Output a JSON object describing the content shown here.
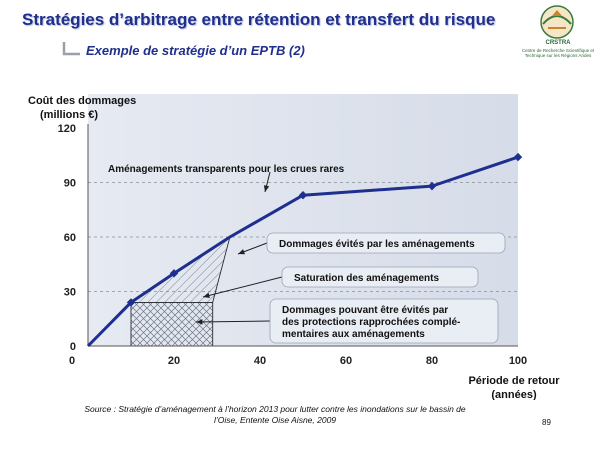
{
  "header": {
    "title": "Stratégies d’arbitrage entre rétention et transfert du risque",
    "subtitle": "Exemple de stratégie d’un EPTB (2)"
  },
  "logo": {
    "acronym": "CRSTRA",
    "caption": "Centre de Recherche Scientifique et Technique sur les Régions Arides"
  },
  "footer": {
    "source_line1": "Source : Stratégie d’aménagement à l’horizon 2013 pour lutter contre les inondations sur le bassin de",
    "source_line2": "l’Oise, Entente Oise Aisne, 2009",
    "page_number": "89"
  },
  "colors": {
    "title": "#1f2f8c",
    "series": "#1e2f8f",
    "plot_bg": "#dfe4ee",
    "grid": "#8a8f99"
  },
  "chart_data": {
    "type": "line",
    "ylabel_line1": "Coût des dommages",
    "ylabel_line2": "(millions €)",
    "xlabel_line1": "Période de retour",
    "xlabel_line2": "(années)",
    "xlim": [
      0,
      100
    ],
    "ylim": [
      0,
      120
    ],
    "x_ticks": [
      0,
      20,
      40,
      60,
      80,
      100
    ],
    "y_ticks": [
      0,
      30,
      60,
      90,
      120
    ],
    "grid": "dashed horizontal at 30, 60, 90",
    "series": [
      {
        "points": [
          [
            0,
            0
          ],
          [
            10,
            24
          ],
          [
            20,
            40
          ],
          [
            33,
            60
          ],
          [
            50,
            83
          ],
          [
            80,
            88
          ],
          [
            100,
            104
          ]
        ]
      }
    ],
    "markers": [
      [
        10,
        24
      ],
      [
        20,
        40
      ],
      [
        50,
        83
      ],
      [
        80,
        88
      ],
      [
        100,
        104
      ]
    ],
    "shaded_regions": [
      {
        "kind": "diagonal-hatch",
        "polygon": [
          [
            10,
            24
          ],
          [
            20,
            40
          ],
          [
            33,
            60
          ],
          [
            29,
            24
          ]
        ]
      },
      {
        "kind": "cross-hatch",
        "polygon": [
          [
            10,
            0
          ],
          [
            10,
            24
          ],
          [
            29,
            24
          ],
          [
            29,
            0
          ]
        ]
      }
    ],
    "annotations": [
      {
        "text": "Aménagements transparents pour les crues rares",
        "box": false,
        "anchor": [
          42,
          77
        ]
      },
      {
        "text": "Dommages évités par les aménagements",
        "box": true,
        "anchor": [
          27,
          40
        ]
      },
      {
        "text": "Saturation des aménagements",
        "box": true,
        "anchor": [
          30,
          26
        ]
      },
      {
        "text": "Dommages pouvant être évités par des protections rapprochées complé-mentaires aux aménagements",
        "lines": [
          "Dommages pouvant être évités par",
          "des protections rapprochées complé-",
          "mentaires aux aménagements"
        ],
        "box": true,
        "anchor": [
          22,
          14
        ]
      }
    ]
  }
}
